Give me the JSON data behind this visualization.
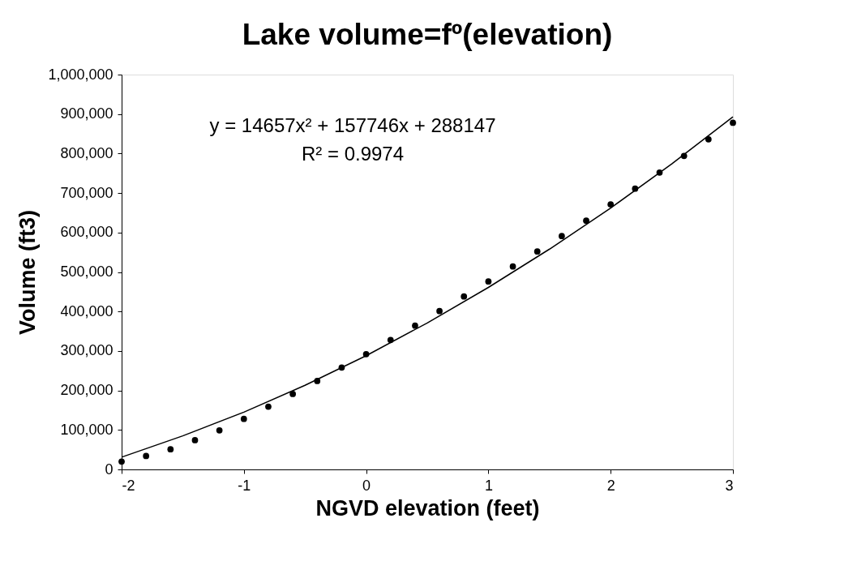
{
  "chart_data": {
    "type": "scatter",
    "title": "Lake volume=fº(elevation)",
    "xlabel": "NGVD elevation (feet)",
    "ylabel": "Volume (ft3)",
    "x": [
      -2,
      -1.8,
      -1.6,
      -1.4,
      -1.2,
      -1,
      -0.8,
      -0.6,
      -0.4,
      -0.2,
      0,
      0.2,
      0.4,
      0.6,
      0.8,
      1,
      1.2,
      1.4,
      1.6,
      1.8,
      2,
      2.2,
      2.4,
      2.6,
      2.8,
      3
    ],
    "series": [
      {
        "color": "#000000",
        "marker": "circle",
        "values": [
          20000,
          34000,
          51000,
          74000,
          99000,
          128000,
          159000,
          191000,
          224000,
          258000,
          292000,
          328000,
          364000,
          401000,
          438000,
          476000,
          514000,
          552000,
          591000,
          630000,
          671000,
          711000,
          752000,
          794000,
          836000,
          878000
        ]
      },
      {
        "type": "line",
        "color": "#000000",
        "marker": "none",
        "line_style": "solid",
        "x": [
          -2,
          -1.5,
          -1,
          -0.5,
          0,
          0.5,
          1,
          1.5,
          2,
          2.5,
          3
        ],
        "values": [
          31000,
          85000,
          145000,
          213000,
          288000,
          371000,
          461000,
          558000,
          662000,
          774000,
          893000
        ]
      }
    ],
    "annotations": [
      "y = 14657x² + 157746x + 288147",
      "R² = 0.9974"
    ],
    "xlim": [
      -2,
      3
    ],
    "xticks": [
      -2,
      -1,
      0,
      1,
      2,
      3
    ],
    "ylim": [
      0,
      1000000
    ],
    "yticks": [
      {
        "value": 0,
        "label": "0"
      },
      {
        "value": 100000,
        "label": "100,000"
      },
      {
        "value": 200000,
        "label": "200,000"
      },
      {
        "value": 300000,
        "label": "300,000"
      },
      {
        "value": 400000,
        "label": "400,000"
      },
      {
        "value": 500000,
        "label": "500,000"
      },
      {
        "value": 600000,
        "label": "600,000"
      },
      {
        "value": 700000,
        "label": "700,000"
      },
      {
        "value": 800000,
        "label": "800,000"
      },
      {
        "value": 900000,
        "label": "900,000"
      },
      {
        "value": 1000000,
        "label": "1,000,000"
      }
    ],
    "grid": false,
    "legend": false
  }
}
